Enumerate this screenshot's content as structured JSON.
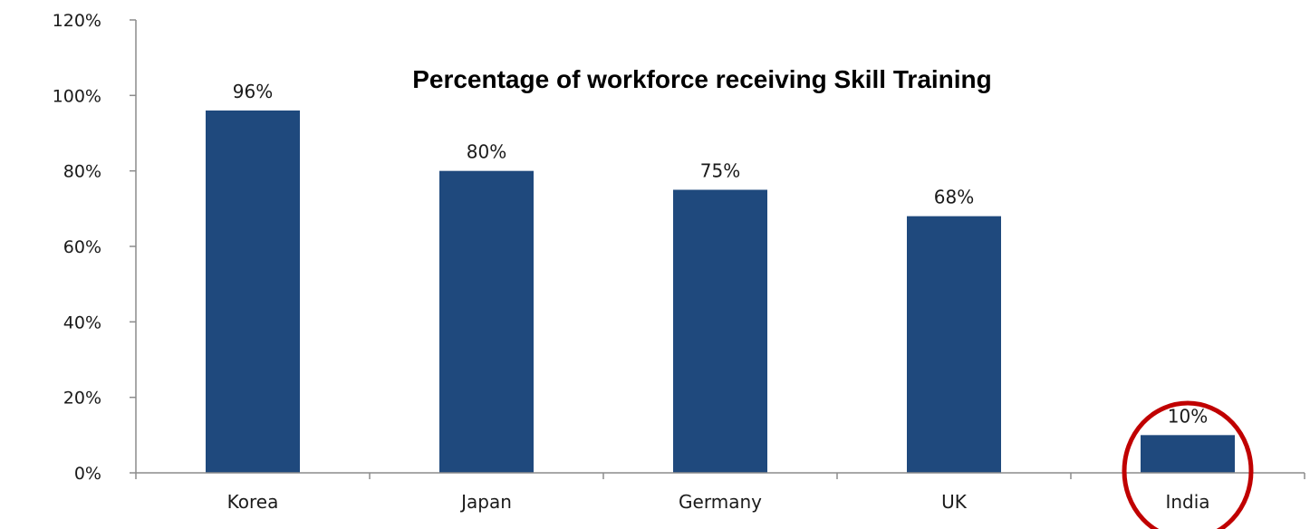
{
  "chart_data": {
    "type": "bar",
    "title": "Percentage of workforce receiving Skill Training",
    "categories": [
      "Korea",
      "Japan",
      "Germany",
      "UK",
      "India"
    ],
    "values": [
      96,
      80,
      75,
      68,
      10
    ],
    "data_labels": [
      "96%",
      "80%",
      "75%",
      "68%",
      "10%"
    ],
    "xlabel": "",
    "ylabel": "",
    "ylim": [
      0,
      120
    ],
    "yticks": [
      0,
      20,
      40,
      60,
      80,
      100,
      120
    ],
    "ytick_labels": [
      "0%",
      "20%",
      "40%",
      "60%",
      "80%",
      "100%",
      "120%"
    ],
    "grid": false,
    "legend": "none",
    "bar_color": "#1f497d",
    "highlight": {
      "category": "India",
      "shape": "ellipse",
      "color": "#c00000"
    }
  }
}
